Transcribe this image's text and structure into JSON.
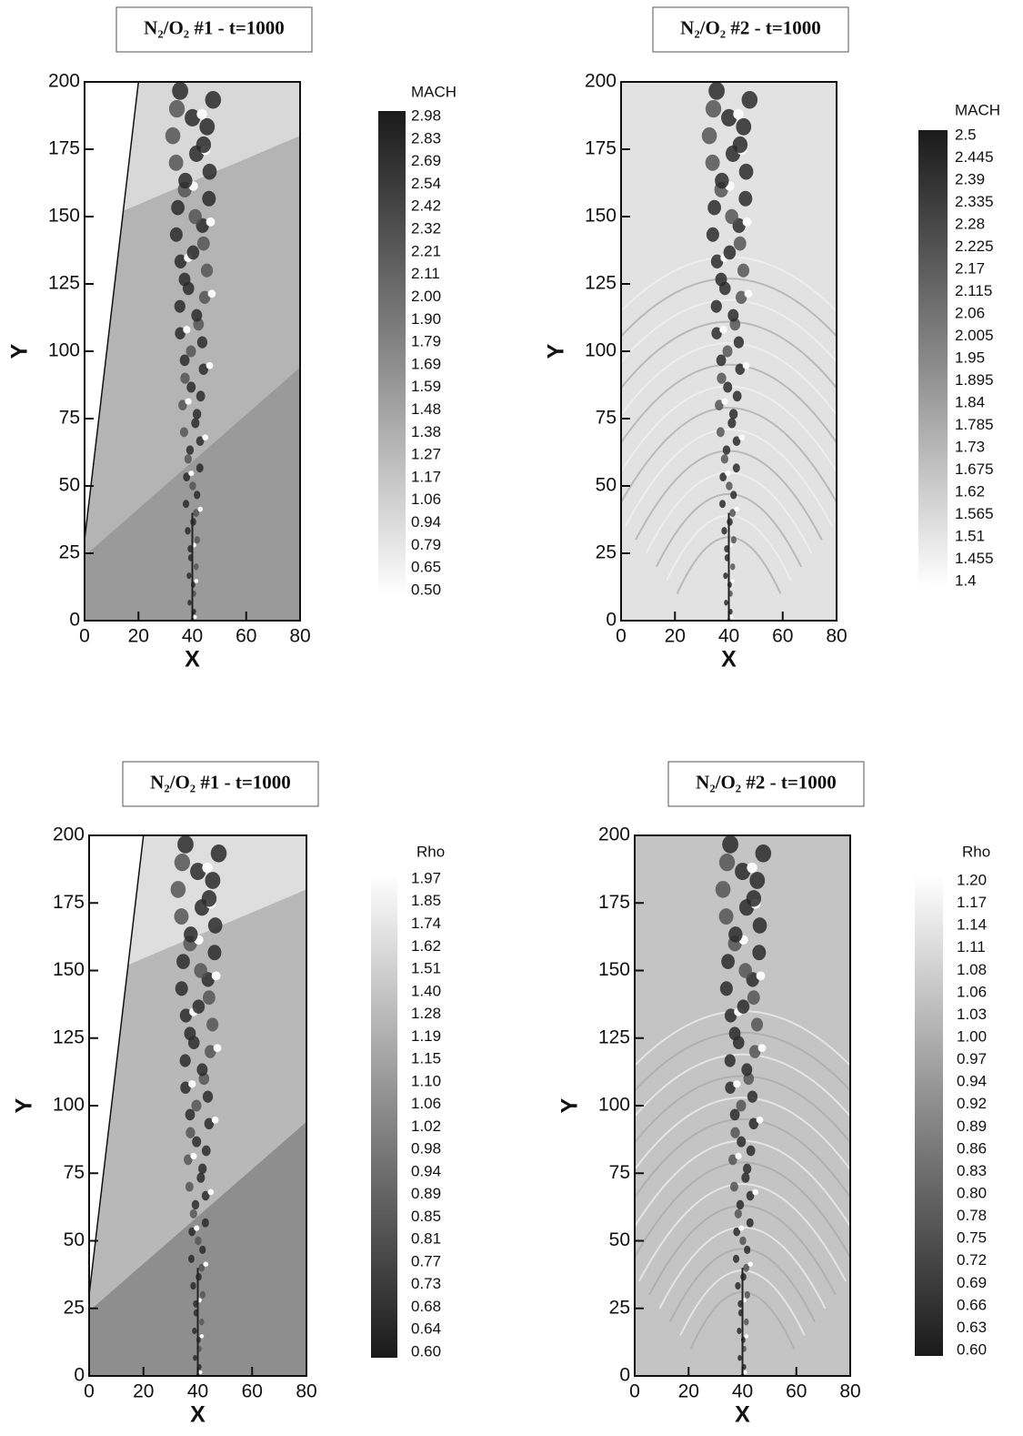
{
  "chart_data": [
    {
      "type": "contour",
      "title": "N₂/O₂ #1 - t=1000",
      "xlabel": "X",
      "ylabel": "Y",
      "xlim": [
        0,
        80
      ],
      "ylim": [
        0,
        200
      ],
      "xticks": [
        0,
        20,
        40,
        60,
        80
      ],
      "yticks": [
        0,
        25,
        50,
        75,
        100,
        125,
        150,
        175,
        200
      ],
      "colorbar": {
        "title": "MACH",
        "ticks": [
          2.98,
          2.83,
          2.69,
          2.54,
          2.42,
          2.32,
          2.21,
          2.11,
          {
            "value": 2,
            "label": "2.00"
          },
          {
            "value": 1.9,
            "label": "1.90"
          },
          1.79,
          1.69,
          1.59,
          1.48,
          1.38,
          1.27,
          1.17,
          1.06,
          0.94,
          0.79,
          0.65,
          {
            "value": 0.5,
            "label": "0.50"
          }
        ]
      }
    },
    {
      "type": "contour",
      "title": "N₂/O₂ #2 - t=1000",
      "xlabel": "X",
      "ylabel": "Y",
      "xlim": [
        0,
        80
      ],
      "ylim": [
        0,
        200
      ],
      "xticks": [
        0,
        20,
        40,
        60,
        80
      ],
      "yticks": [
        0,
        25,
        50,
        75,
        100,
        125,
        150,
        175,
        200
      ],
      "colorbar": {
        "title": "MACH",
        "ticks": [
          2.5,
          2.445,
          2.39,
          2.335,
          2.28,
          2.225,
          2.17,
          2.115,
          2.06,
          2.005,
          1.95,
          1.895,
          1.84,
          1.785,
          1.73,
          1.675,
          1.62,
          1.565,
          1.51,
          1.455,
          1.4
        ]
      }
    },
    {
      "type": "contour",
      "title": "N₂/O₂ #1 - t=1000",
      "xlabel": "X",
      "ylabel": "Y",
      "xlim": [
        0,
        80
      ],
      "ylim": [
        0,
        200
      ],
      "xticks": [
        0,
        20,
        40,
        60,
        80
      ],
      "yticks": [
        0,
        25,
        50,
        75,
        100,
        125,
        150,
        175,
        200
      ],
      "colorbar": {
        "title": "Rho",
        "ticks": [
          1.97,
          1.85,
          1.74,
          1.62,
          1.51,
          {
            "value": 1.4,
            "label": "1.40"
          },
          1.28,
          1.19,
          1.15,
          {
            "value": 1.1,
            "label": "1.10"
          },
          1.06,
          1.02,
          0.98,
          0.94,
          0.89,
          0.85,
          0.81,
          0.77,
          0.73,
          0.68,
          0.64,
          {
            "value": 0.6,
            "label": "0.60"
          }
        ]
      }
    },
    {
      "type": "contour",
      "title": "N₂/O₂ #2 - t=1000",
      "xlabel": "X",
      "ylabel": "Y",
      "xlim": [
        0,
        80
      ],
      "ylim": [
        0,
        200
      ],
      "xticks": [
        0,
        20,
        40,
        60,
        80
      ],
      "yticks": [
        0,
        25,
        50,
        75,
        100,
        125,
        150,
        175,
        200
      ],
      "colorbar": {
        "title": "Rho",
        "ticks": [
          {
            "value": 1.2,
            "label": "1.20"
          },
          1.17,
          1.14,
          1.11,
          1.08,
          1.06,
          1.03,
          {
            "value": 1,
            "label": "1.00"
          },
          0.97,
          0.94,
          0.92,
          0.89,
          0.86,
          0.83,
          {
            "value": 0.8,
            "label": "0.80"
          },
          0.78,
          0.75,
          0.72,
          0.69,
          0.66,
          0.63,
          {
            "value": 0.6,
            "label": "0.60"
          }
        ]
      }
    }
  ]
}
